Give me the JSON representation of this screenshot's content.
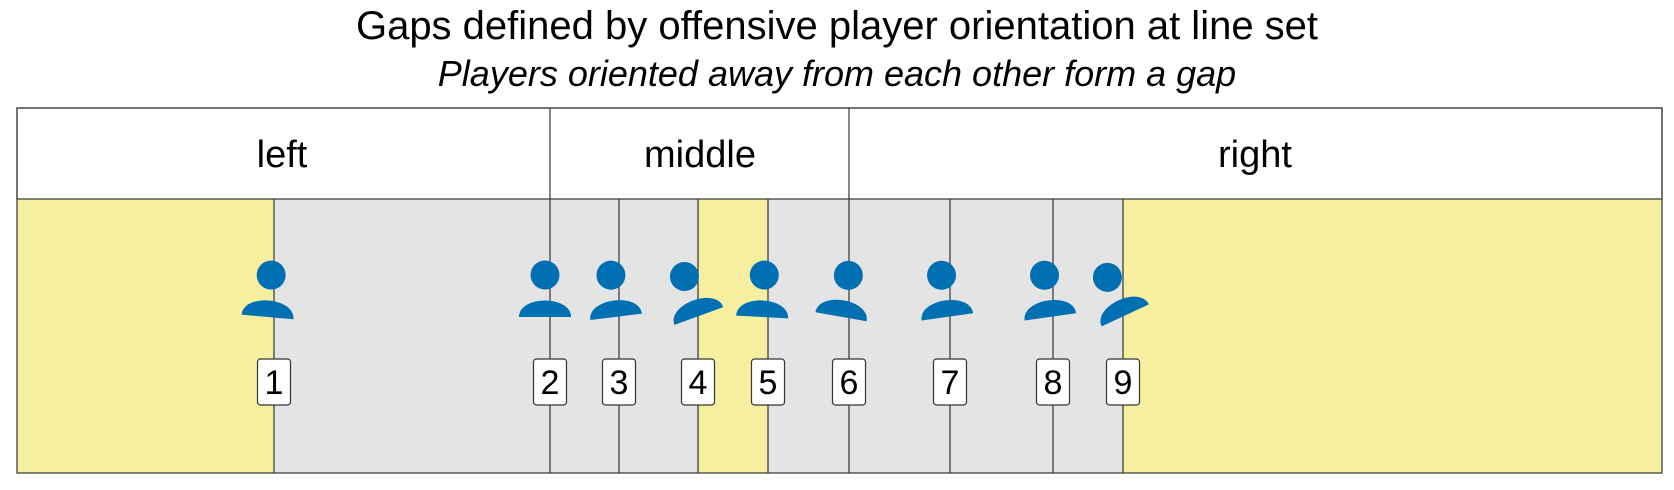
{
  "title": "Gaps defined by offensive player orientation at line set",
  "subtitle": "Players oriented away from each other form a gap",
  "regions": [
    {
      "label": "left"
    },
    {
      "label": "middle"
    },
    {
      "label": "right"
    }
  ],
  "players": [
    {
      "number": "1",
      "tilt_deg": 5
    },
    {
      "number": "2",
      "tilt_deg": 0
    },
    {
      "number": "3",
      "tilt_deg": -7
    },
    {
      "number": "4",
      "tilt_deg": -20
    },
    {
      "number": "5",
      "tilt_deg": 3
    },
    {
      "number": "6",
      "tilt_deg": 10
    },
    {
      "number": "7",
      "tilt_deg": -8
    },
    {
      "number": "8",
      "tilt_deg": -8
    },
    {
      "number": "9",
      "tilt_deg": -25
    }
  ],
  "colors": {
    "gap": "#f6efa0",
    "no_gap": "#e4e4e4",
    "player": "#0070b2",
    "line": "#333333",
    "label_bg": "#ffffff"
  },
  "icons": {
    "player": "person-icon"
  }
}
